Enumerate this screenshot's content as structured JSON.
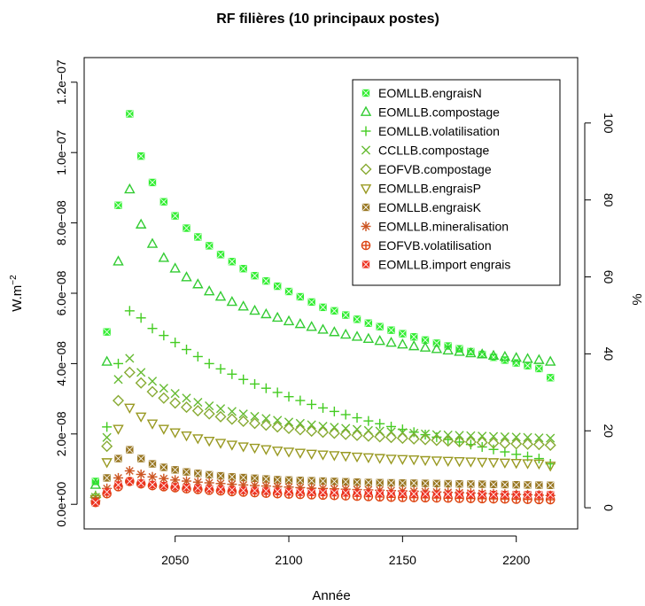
{
  "chart_data": {
    "type": "scatter",
    "title": "RF filières (10 principaux postes)",
    "xlabel": "Année",
    "ylabel_left": "W.m",
    "ylabel_left_exponent": "−2",
    "ylabel_right": "%",
    "xlim": [
      2010,
      2227
    ],
    "ylim_left": [
      -7e-09,
      1.27e-07
    ],
    "ylim_right": [
      -5.5,
      117
    ],
    "x_ticks": [
      2050,
      2100,
      2150,
      2200
    ],
    "x_tick_labels": [
      "2050",
      "2100",
      "2150",
      "2200"
    ],
    "y_left_ticks": [
      0,
      2e-08,
      4e-08,
      6e-08,
      8e-08,
      1e-07,
      1.2e-07
    ],
    "y_left_tick_labels": [
      "0.0e+00",
      "2.0e−08",
      "4.0e−08",
      "6.0e−08",
      "8.0e−08",
      "1.0e−07",
      "1.2e−07"
    ],
    "y_right_ticks": [
      0,
      20,
      40,
      60,
      80,
      100
    ],
    "y_right_tick_labels": [
      "0",
      "20",
      "40",
      "60",
      "80",
      "100"
    ],
    "legend_position": "top-right",
    "grid": false,
    "x": [
      2015,
      2020,
      2025,
      2030,
      2035,
      2040,
      2045,
      2050,
      2055,
      2060,
      2065,
      2070,
      2075,
      2080,
      2085,
      2090,
      2095,
      2100,
      2105,
      2110,
      2115,
      2120,
      2125,
      2130,
      2135,
      2140,
      2145,
      2150,
      2155,
      2160,
      2165,
      2170,
      2175,
      2180,
      2185,
      2190,
      2195,
      2200,
      2205,
      2210,
      2215
    ],
    "series": [
      {
        "name": "EOMLLB.engraisN",
        "color": "#33ee33",
        "marker": "square-x",
        "values": [
          6.5e-09,
          4.9e-08,
          8.5e-08,
          1.11e-07,
          9.9e-08,
          9.15e-08,
          8.6e-08,
          8.2e-08,
          7.85e-08,
          7.6e-08,
          7.35e-08,
          7.1e-08,
          6.9e-08,
          6.7e-08,
          6.5e-08,
          6.35e-08,
          6.2e-08,
          6.05e-08,
          5.9e-08,
          5.75e-08,
          5.6e-08,
          5.5e-08,
          5.38e-08,
          5.26e-08,
          5.15e-08,
          5.05e-08,
          4.95e-08,
          4.85e-08,
          4.76e-08,
          4.67e-08,
          4.58e-08,
          4.5e-08,
          4.42e-08,
          4.34e-08,
          4.26e-08,
          4.18e-08,
          4.1e-08,
          4.02e-08,
          3.94e-08,
          3.86e-08,
          3.6e-08
        ]
      },
      {
        "name": "EOMLLB.compostage",
        "color": "#33cc33",
        "marker": "triangle-up",
        "values": [
          5.5e-09,
          4.05e-08,
          6.9e-08,
          8.95e-08,
          7.95e-08,
          7.4e-08,
          7e-08,
          6.7e-08,
          6.45e-08,
          6.25e-08,
          6.05e-08,
          5.9e-08,
          5.75e-08,
          5.62e-08,
          5.5e-08,
          5.4e-08,
          5.3e-08,
          5.2e-08,
          5.12e-08,
          5.04e-08,
          4.96e-08,
          4.89e-08,
          4.82e-08,
          4.76e-08,
          4.7e-08,
          4.64e-08,
          4.59e-08,
          4.54e-08,
          4.49e-08,
          4.45e-08,
          4.41e-08,
          4.37e-08,
          4.33e-08,
          4.29e-08,
          4.26e-08,
          4.22e-08,
          4.19e-08,
          4.16e-08,
          4.13e-08,
          4.1e-08,
          4.05e-08
        ]
      },
      {
        "name": "EOMLLB.volatilisation",
        "color": "#44cc22",
        "marker": "plus",
        "values": [
          2.5e-09,
          2.2e-08,
          4e-08,
          5.5e-08,
          5.3e-08,
          5e-08,
          4.8e-08,
          4.6e-08,
          4.4e-08,
          4.2e-08,
          4e-08,
          3.85e-08,
          3.7e-08,
          3.55e-08,
          3.42e-08,
          3.3e-08,
          3.18e-08,
          3.06e-08,
          2.95e-08,
          2.84e-08,
          2.74e-08,
          2.64e-08,
          2.55e-08,
          2.46e-08,
          2.37e-08,
          2.29e-08,
          2.21e-08,
          2.13e-08,
          2.05e-08,
          1.98e-08,
          1.91e-08,
          1.84e-08,
          1.77e-08,
          1.7e-08,
          1.63e-08,
          1.56e-08,
          1.49e-08,
          1.42e-08,
          1.36e-08,
          1.3e-08,
          1.15e-08
        ]
      },
      {
        "name": "CCLLB.compostage",
        "color": "#66bb33",
        "marker": "x",
        "values": [
          2e-09,
          1.9e-08,
          3.55e-08,
          4.15e-08,
          3.75e-08,
          3.5e-08,
          3.3e-08,
          3.15e-08,
          3.02e-08,
          2.9e-08,
          2.8e-08,
          2.72e-08,
          2.64e-08,
          2.57e-08,
          2.5e-08,
          2.44e-08,
          2.39e-08,
          2.34e-08,
          2.3e-08,
          2.26e-08,
          2.22e-08,
          2.19e-08,
          2.16e-08,
          2.13e-08,
          2.1e-08,
          2.08e-08,
          2.06e-08,
          2.04e-08,
          2.02e-08,
          2e-08,
          1.98e-08,
          1.97e-08,
          1.96e-08,
          1.95e-08,
          1.94e-08,
          1.93e-08,
          1.92e-08,
          1.91e-08,
          1.9e-08,
          1.89e-08,
          1.88e-08
        ]
      },
      {
        "name": "EOFVB.compostage",
        "color": "#88aa33",
        "marker": "diamond",
        "values": [
          2e-09,
          1.65e-08,
          2.95e-08,
          3.75e-08,
          3.45e-08,
          3.2e-08,
          3.02e-08,
          2.88e-08,
          2.76e-08,
          2.66e-08,
          2.57e-08,
          2.49e-08,
          2.42e-08,
          2.36e-08,
          2.3e-08,
          2.25e-08,
          2.2e-08,
          2.16e-08,
          2.12e-08,
          2.08e-08,
          2.05e-08,
          2.02e-08,
          1.99e-08,
          1.96e-08,
          1.94e-08,
          1.92e-08,
          1.9e-08,
          1.88e-08,
          1.86e-08,
          1.84e-08,
          1.82e-08,
          1.8e-08,
          1.78e-08,
          1.77e-08,
          1.76e-08,
          1.74e-08,
          1.73e-08,
          1.72e-08,
          1.71e-08,
          1.7e-08,
          1.68e-08
        ]
      },
      {
        "name": "EOMLLB.engraisP",
        "color": "#999922",
        "marker": "triangle-down",
        "values": [
          1.5e-09,
          1.2e-08,
          2.15e-08,
          2.75e-08,
          2.5e-08,
          2.3e-08,
          2.15e-08,
          2.05e-08,
          1.96e-08,
          1.88e-08,
          1.81e-08,
          1.75e-08,
          1.7e-08,
          1.65e-08,
          1.61e-08,
          1.57e-08,
          1.53e-08,
          1.5e-08,
          1.47e-08,
          1.44e-08,
          1.42e-08,
          1.4e-08,
          1.38e-08,
          1.36e-08,
          1.34e-08,
          1.32e-08,
          1.3e-08,
          1.29e-08,
          1.28e-08,
          1.26e-08,
          1.25e-08,
          1.24e-08,
          1.23e-08,
          1.22e-08,
          1.21e-08,
          1.2e-08,
          1.19e-08,
          1.18e-08,
          1.17e-08,
          1.16e-08,
          1.1e-08
        ]
      },
      {
        "name": "EOMLLB.engraisK",
        "color": "#997722",
        "marker": "square-x",
        "values": [
          1e-09,
          7.5e-09,
          1.3e-08,
          1.55e-08,
          1.3e-08,
          1.15e-08,
          1.05e-08,
          9.8e-09,
          9.2e-09,
          8.8e-09,
          8.4e-09,
          8.1e-09,
          7.8e-09,
          7.6e-09,
          7.4e-09,
          7.2e-09,
          7e-09,
          6.9e-09,
          6.8e-09,
          6.7e-09,
          6.6e-09,
          6.5e-09,
          6.4e-09,
          6.3e-09,
          6.2e-09,
          6.15e-09,
          6.1e-09,
          6.05e-09,
          6e-09,
          5.95e-09,
          5.9e-09,
          5.85e-09,
          5.8e-09,
          5.75e-09,
          5.7e-09,
          5.65e-09,
          5.6e-09,
          5.55e-09,
          5.5e-09,
          5.45e-09,
          5.4e-09
        ]
      },
      {
        "name": "EOMLLB.mineralisation",
        "color": "#cc5522",
        "marker": "asterisk",
        "values": [
          1e-09,
          4.5e-09,
          7.5e-09,
          9.5e-09,
          8.5e-09,
          7.8e-09,
          7.3e-09,
          6.9e-09,
          6.6e-09,
          6.3e-09,
          6.1e-09,
          5.9e-09,
          5.7e-09,
          5.5e-09,
          5.35e-09,
          5.2e-09,
          5.05e-09,
          4.9e-09,
          4.75e-09,
          4.6e-09,
          4.5e-09,
          4.4e-09,
          4.3e-09,
          4.2e-09,
          4.1e-09,
          4e-09,
          3.9e-09,
          3.8e-09,
          3.7e-09,
          3.6e-09,
          3.5e-09,
          3.4e-09,
          3.3e-09,
          3.2e-09,
          3.1e-09,
          3e-09,
          2.9e-09,
          2.8e-09,
          2.7e-09,
          2.6e-09,
          2.5e-09
        ]
      },
      {
        "name": "EOFVB.volatilisation",
        "color": "#dd4411",
        "marker": "circle-plus",
        "values": [
          5e-10,
          3e-09,
          5e-09,
          6.5e-09,
          5.8e-09,
          5.3e-09,
          5e-09,
          4.7e-09,
          4.4e-09,
          4.2e-09,
          4e-09,
          3.8e-09,
          3.6e-09,
          3.45e-09,
          3.3e-09,
          3.15e-09,
          3e-09,
          2.9e-09,
          2.8e-09,
          2.7e-09,
          2.6e-09,
          2.5e-09,
          2.4e-09,
          2.3e-09,
          2.2e-09,
          2.1e-09,
          2e-09,
          1.95e-09,
          1.9e-09,
          1.85e-09,
          1.8e-09,
          1.75e-09,
          1.7e-09,
          1.65e-09,
          1.6e-09,
          1.55e-09,
          1.5e-09,
          1.45e-09,
          1.4e-09,
          1.35e-09,
          1.3e-09
        ]
      },
      {
        "name": "EOMLLB.import engrais",
        "color": "#ee3322",
        "marker": "square-x",
        "values": [
          5e-10,
          3.5e-09,
          5.5e-09,
          6.5e-09,
          6e-09,
          5.6e-09,
          5.3e-09,
          5e-09,
          4.8e-09,
          4.6e-09,
          4.4e-09,
          4.25e-09,
          4.1e-09,
          3.95e-09,
          3.85e-09,
          3.75e-09,
          3.65e-09,
          3.55e-09,
          3.45e-09,
          3.4e-09,
          3.35e-09,
          3.3e-09,
          3.25e-09,
          3.2e-09,
          3.15e-09,
          3.1e-09,
          3.05e-09,
          3e-09,
          2.95e-09,
          2.9e-09,
          2.88e-09,
          2.86e-09,
          2.84e-09,
          2.82e-09,
          2.8e-09,
          2.78e-09,
          2.76e-09,
          2.74e-09,
          2.72e-09,
          2.7e-09,
          2.68e-09
        ]
      }
    ]
  }
}
